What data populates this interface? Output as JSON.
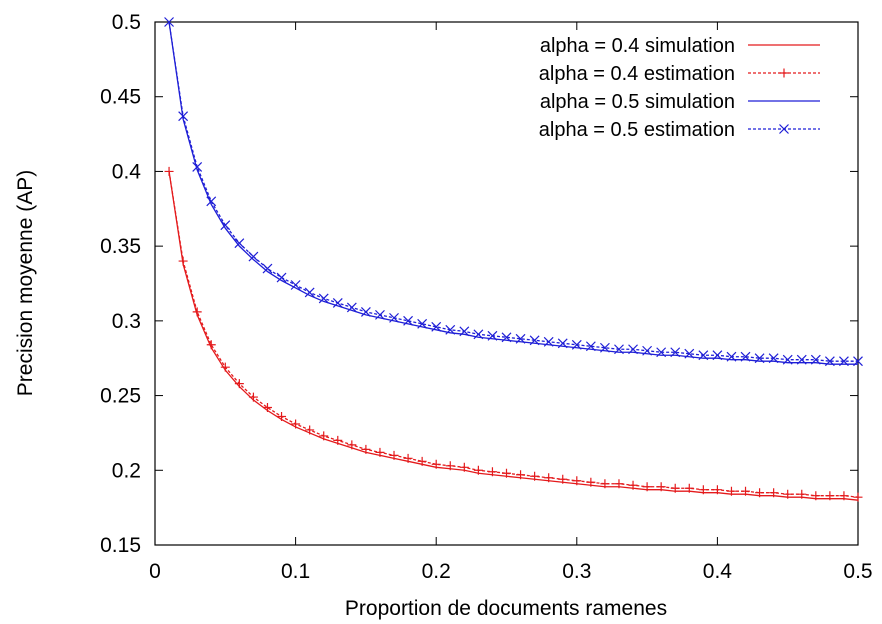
{
  "chart_data": {
    "type": "line",
    "title": "",
    "xlabel": "Proportion de documents ramenes",
    "ylabel": "Precision moyenne (AP)",
    "xlim": [
      0,
      0.5
    ],
    "ylim": [
      0.15,
      0.5
    ],
    "xticks": [
      "0",
      "0.1",
      "0.2",
      "0.3",
      "0.4",
      "0.5"
    ],
    "yticks": [
      "0.15",
      "0.2",
      "0.25",
      "0.3",
      "0.35",
      "0.4",
      "0.45",
      "0.5"
    ],
    "grid": false,
    "legend_position": "top-right",
    "x": [
      0.01,
      0.02,
      0.03,
      0.04,
      0.05,
      0.06,
      0.07,
      0.08,
      0.09,
      0.1,
      0.11,
      0.12,
      0.13,
      0.14,
      0.15,
      0.16,
      0.17,
      0.18,
      0.19,
      0.2,
      0.21,
      0.22,
      0.23,
      0.24,
      0.25,
      0.26,
      0.27,
      0.28,
      0.29,
      0.3,
      0.31,
      0.32,
      0.33,
      0.34,
      0.35,
      0.36,
      0.37,
      0.38,
      0.39,
      0.4,
      0.41,
      0.42,
      0.43,
      0.44,
      0.45,
      0.46,
      0.47,
      0.48,
      0.49,
      0.5
    ],
    "series": [
      {
        "name": "alpha = 0.4 simulation",
        "color": "#e41a1c",
        "style": "solid",
        "marker": "none",
        "values": [
          0.4,
          0.338,
          0.304,
          0.282,
          0.267,
          0.256,
          0.247,
          0.24,
          0.234,
          0.229,
          0.225,
          0.221,
          0.218,
          0.215,
          0.212,
          0.21,
          0.208,
          0.206,
          0.204,
          0.202,
          0.201,
          0.2,
          0.198,
          0.197,
          0.196,
          0.195,
          0.194,
          0.193,
          0.192,
          0.191,
          0.19,
          0.189,
          0.189,
          0.188,
          0.187,
          0.187,
          0.186,
          0.186,
          0.185,
          0.185,
          0.184,
          0.184,
          0.183,
          0.183,
          0.182,
          0.182,
          0.181,
          0.181,
          0.181,
          0.18
        ]
      },
      {
        "name": "alpha = 0.4 estimation",
        "color": "#e41a1c",
        "style": "dashed",
        "marker": "plus",
        "values": [
          0.4,
          0.34,
          0.306,
          0.284,
          0.269,
          0.258,
          0.249,
          0.242,
          0.236,
          0.231,
          0.227,
          0.223,
          0.22,
          0.217,
          0.214,
          0.212,
          0.21,
          0.208,
          0.206,
          0.204,
          0.203,
          0.202,
          0.2,
          0.199,
          0.198,
          0.197,
          0.196,
          0.195,
          0.194,
          0.193,
          0.192,
          0.191,
          0.191,
          0.19,
          0.189,
          0.189,
          0.188,
          0.188,
          0.187,
          0.187,
          0.186,
          0.186,
          0.185,
          0.185,
          0.184,
          0.184,
          0.183,
          0.183,
          0.183,
          0.182
        ]
      },
      {
        "name": "alpha = 0.5 simulation",
        "color": "#1f1fd6",
        "style": "solid",
        "marker": "none",
        "values": [
          0.5,
          0.435,
          0.401,
          0.378,
          0.362,
          0.35,
          0.341,
          0.333,
          0.327,
          0.322,
          0.317,
          0.313,
          0.31,
          0.307,
          0.304,
          0.302,
          0.3,
          0.298,
          0.296,
          0.294,
          0.292,
          0.291,
          0.289,
          0.288,
          0.287,
          0.286,
          0.285,
          0.284,
          0.283,
          0.282,
          0.281,
          0.28,
          0.279,
          0.279,
          0.278,
          0.277,
          0.277,
          0.276,
          0.275,
          0.275,
          0.274,
          0.274,
          0.273,
          0.273,
          0.272,
          0.272,
          0.272,
          0.271,
          0.271,
          0.271
        ]
      },
      {
        "name": "alpha = 0.5 estimation",
        "color": "#1f1fd6",
        "style": "dashed",
        "marker": "cross",
        "values": [
          0.5,
          0.437,
          0.403,
          0.38,
          0.364,
          0.352,
          0.343,
          0.335,
          0.329,
          0.324,
          0.319,
          0.315,
          0.312,
          0.309,
          0.306,
          0.304,
          0.302,
          0.3,
          0.298,
          0.296,
          0.294,
          0.293,
          0.291,
          0.29,
          0.289,
          0.288,
          0.287,
          0.286,
          0.285,
          0.284,
          0.283,
          0.282,
          0.281,
          0.281,
          0.28,
          0.279,
          0.279,
          0.278,
          0.277,
          0.277,
          0.276,
          0.276,
          0.275,
          0.275,
          0.274,
          0.274,
          0.274,
          0.273,
          0.273,
          0.273
        ]
      }
    ]
  }
}
